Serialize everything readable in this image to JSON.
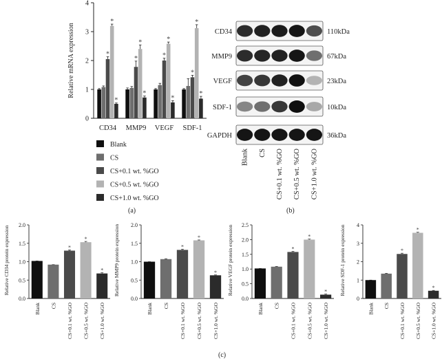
{
  "panels": {
    "a": "(a)",
    "b": "(b)",
    "c": "(c)"
  },
  "colors": {
    "blank": "#0f0f0f",
    "cs": "#6e6e6e",
    "go01": "#4a4a4a",
    "go05": "#b3b3b3",
    "go10": "#2b2b2b"
  },
  "chart_data": [
    {
      "type": "bar",
      "panel": "a",
      "ylabel": "Relative mRNA expression",
      "xlabel": "",
      "ylim": [
        0,
        4
      ],
      "yticks": [
        "0",
        "1",
        "2",
        "3",
        "4"
      ],
      "categories": [
        "CD34",
        "MMP9",
        "VEGF",
        "SDF-1"
      ],
      "series": [
        {
          "name": "Blank",
          "values": [
            1.0,
            1.0,
            1.0,
            1.0
          ],
          "errors": [
            0.03,
            0.05,
            0.03,
            0.03
          ]
        },
        {
          "name": "CS",
          "values": [
            1.08,
            1.05,
            1.15,
            1.12
          ],
          "errors": [
            0.04,
            0.05,
            0.06,
            0.25
          ]
        },
        {
          "name": "CS+0.1 wt. %GO",
          "values": [
            2.05,
            1.78,
            2.0,
            1.42
          ],
          "errors": [
            0.08,
            0.2,
            0.08,
            0.07
          ]
        },
        {
          "name": "CS+0.5 wt. %GO",
          "values": [
            3.2,
            2.4,
            2.58,
            3.12
          ],
          "errors": [
            0.06,
            0.14,
            0.06,
            0.12
          ]
        },
        {
          "name": "CS+1.0 wt. %GO",
          "values": [
            0.5,
            0.72,
            0.55,
            0.68
          ],
          "errors": [
            0.03,
            0.05,
            0.06,
            0.08
          ]
        }
      ],
      "significance": [
        [
          false,
          false,
          true,
          true,
          true
        ],
        [
          false,
          false,
          true,
          true,
          true
        ],
        [
          false,
          false,
          true,
          true,
          true
        ],
        [
          false,
          false,
          true,
          true,
          true
        ]
      ],
      "sig_mark": "*",
      "legend": [
        "Blank",
        "CS",
        "CS+0.1 wt. %GO",
        "CS+0.5 wt. %GO",
        "CS+1.0 wt. %GO"
      ],
      "legend_position": "below"
    },
    {
      "type": "western-blot",
      "panel": "b",
      "rows": [
        {
          "protein": "CD34",
          "size": "110kDa",
          "intensity": [
            0.85,
            0.9,
            0.92,
            0.95,
            0.7
          ]
        },
        {
          "protein": "MMP9",
          "size": "67kDa",
          "intensity": [
            0.85,
            0.88,
            0.9,
            0.95,
            0.55
          ]
        },
        {
          "protein": "VEGF",
          "size": "23kDa",
          "intensity": [
            0.75,
            0.8,
            0.9,
            0.97,
            0.25
          ]
        },
        {
          "protein": "SDF-1",
          "size": "10kDa",
          "intensity": [
            0.45,
            0.55,
            0.8,
            0.98,
            0.3
          ]
        },
        {
          "protein": "GAPDH",
          "size": "36kDa",
          "intensity": [
            0.95,
            0.95,
            0.95,
            0.95,
            0.95
          ]
        }
      ],
      "lanes": [
        "Blank",
        "CS",
        "CS+0.1 wt. %GO",
        "CS+0.5 wt. %GO",
        "CS+1.0 wt. %GO"
      ]
    },
    {
      "type": "bar",
      "panel": "c",
      "ylabel": "Relative CD34 protein expression",
      "ylim": [
        0,
        2.0
      ],
      "yticks": [
        "0.0",
        "0.5",
        "1.0",
        "1.5",
        "2.0"
      ],
      "categories": [
        "Blank",
        "CS",
        "CS+0.1 wt. %GO",
        "CS+0.5 wt. %GO",
        "CS+1.0 wt. %GO"
      ],
      "values": [
        1.02,
        0.92,
        1.3,
        1.53,
        0.68
      ],
      "errors": [
        0.0,
        0.0,
        0.02,
        0.02,
        0.02
      ],
      "significance": [
        false,
        false,
        true,
        true,
        true
      ],
      "sig_mark": "*"
    },
    {
      "type": "bar",
      "panel": "c",
      "ylabel": "Relative MMP9 protein expression",
      "ylim": [
        0,
        2.0
      ],
      "yticks": [
        "0.0",
        "0.5",
        "1.0",
        "1.5",
        "2.0"
      ],
      "categories": [
        "Blank",
        "CS",
        "CS+0.1 wt. %GO",
        "CS+0.5 wt. %GO",
        "CS+1.0 wt. %GO"
      ],
      "values": [
        1.0,
        1.07,
        1.32,
        1.58,
        0.63
      ],
      "errors": [
        0.0,
        0.01,
        0.02,
        0.01,
        0.01
      ],
      "significance": [
        false,
        false,
        true,
        true,
        true
      ],
      "sig_mark": "*"
    },
    {
      "type": "bar",
      "panel": "c",
      "ylabel": "Relative VEGF protein expression",
      "ylim": [
        0,
        2.5
      ],
      "yticks": [
        "0.0",
        "0.5",
        "1.0",
        "1.5",
        "2.0",
        "2.5"
      ],
      "categories": [
        "Blank",
        "CS",
        "CS+0.1 wt. %GO",
        "CS+0.5 wt. %GO",
        "CS+1.0 wt. %GO"
      ],
      "values": [
        1.02,
        1.08,
        1.58,
        2.0,
        0.13
      ],
      "errors": [
        0.0,
        0.01,
        0.02,
        0.02,
        0.02
      ],
      "significance": [
        false,
        false,
        true,
        true,
        true
      ],
      "sig_mark": "*"
    },
    {
      "type": "bar",
      "panel": "c",
      "ylabel": "Relative SDF-1 protein expression",
      "ylim": [
        0,
        4
      ],
      "yticks": [
        "0",
        "1",
        "2",
        "3",
        "4"
      ],
      "categories": [
        "Blank",
        "CS",
        "CS+0.1 wt. %GO",
        "CS+0.5 wt. %GO",
        "CS+1.0 wt. %GO"
      ],
      "values": [
        1.0,
        1.35,
        2.42,
        3.57,
        0.42
      ],
      "errors": [
        0.0,
        0.02,
        0.04,
        0.03,
        0.02
      ],
      "significance": [
        false,
        false,
        true,
        true,
        true
      ],
      "sig_mark": "*"
    }
  ]
}
